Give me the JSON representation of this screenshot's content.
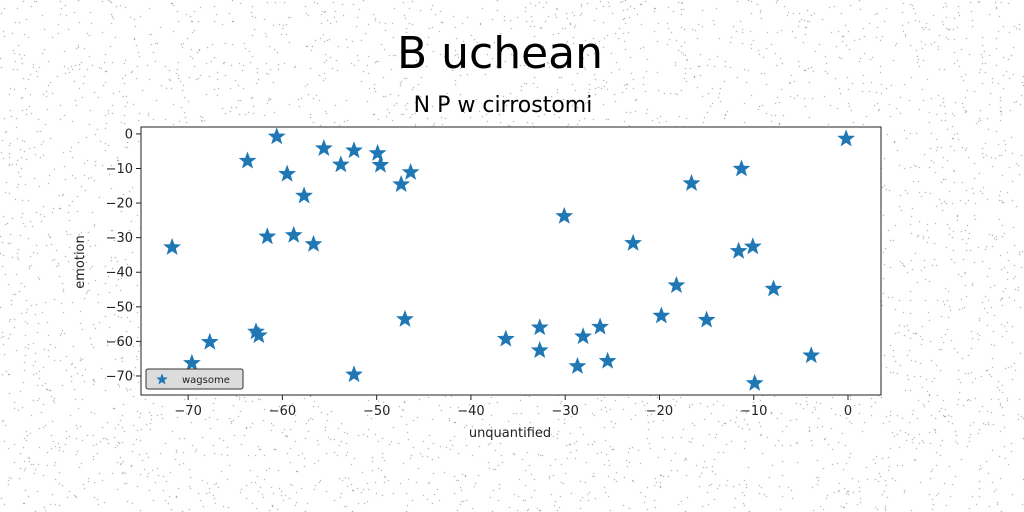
{
  "chart_data": {
    "type": "scatter",
    "title": "B uchean",
    "subtitle": "N P w cirrostomi",
    "xlabel": "unquantified",
    "ylabel": "emotion",
    "xlim": [
      -75,
      3.5
    ],
    "ylim": [
      -75.5,
      2
    ],
    "xticks": [
      -70,
      -60,
      -50,
      -40,
      -30,
      -20,
      -10,
      0
    ],
    "yticks": [
      0,
      -10,
      -20,
      -30,
      -40,
      -50,
      -60,
      -70
    ],
    "grid": false,
    "legend_position": "lower-left",
    "marker": "star",
    "color": "#1f77b4",
    "series": [
      {
        "name": "wagsome",
        "x": [
          -60.6,
          -63.7,
          -59.5,
          -57.7,
          -55.6,
          -53.8,
          -52.4,
          -49.9,
          -49.6,
          -47.4,
          -46.4,
          -71.7,
          -61.6,
          -58.8,
          -56.7,
          -30.1,
          -22.8,
          -16.6,
          -11.3,
          -0.2,
          -11.6,
          -10.1,
          -18.2,
          -7.9,
          -47.0,
          -19.8,
          -15.0,
          -36.3,
          -32.7,
          -32.7,
          -28.1,
          -26.3,
          -25.5,
          -28.7,
          -3.9,
          -9.9,
          -69.6,
          -67.7,
          -62.8,
          -62.5,
          -52.4
        ],
        "y": [
          -0.8,
          -7.8,
          -11.6,
          -17.9,
          -4.2,
          -8.9,
          -4.8,
          -5.6,
          -9.0,
          -14.6,
          -11.1,
          -32.8,
          -29.7,
          -29.3,
          -31.9,
          -23.8,
          -31.6,
          -14.3,
          -10.1,
          -1.4,
          -33.9,
          -32.6,
          -43.8,
          -44.8,
          -53.6,
          -52.6,
          -53.8,
          -59.3,
          -56.0,
          -62.6,
          -58.6,
          -55.8,
          -65.7,
          -67.2,
          -64.1,
          -72.1,
          -66.3,
          -60.2,
          -57.2,
          -58.3,
          -69.6
        ]
      }
    ]
  }
}
